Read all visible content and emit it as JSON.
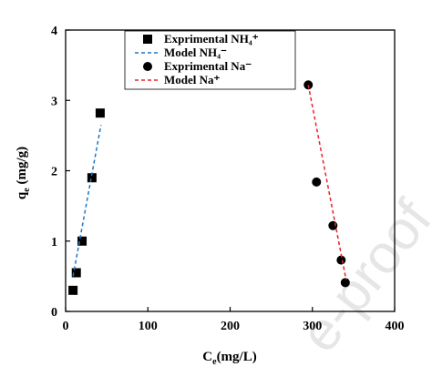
{
  "chart_data": {
    "type": "scatter",
    "xlabel_main": "C",
    "xlabel_sub": "e",
    "xlabel_rest": "(mg/L)",
    "ylabel_main": "q",
    "ylabel_sub": "e",
    "ylabel_rest": " (mg/g)",
    "xlim": [
      0,
      400
    ],
    "ylim": [
      0,
      4
    ],
    "x_ticks": [
      0,
      100,
      200,
      300,
      400
    ],
    "y_ticks": [
      0,
      1,
      2,
      3,
      4
    ],
    "grid": false,
    "legend_position": "top-center",
    "series": [
      {
        "name": "Exprimental NH₄⁺",
        "kind": "points",
        "marker": "square",
        "color": "#000000",
        "x": [
          9,
          13,
          20,
          32,
          42
        ],
        "y": [
          0.3,
          0.55,
          1.0,
          1.9,
          2.82
        ]
      },
      {
        "name": "Model NH₄⁻",
        "kind": "line",
        "dash": true,
        "color": "#1f77c4",
        "x": [
          9,
          43
        ],
        "y": [
          0.5,
          2.65
        ]
      },
      {
        "name": "Exprimental Na⁻",
        "kind": "points",
        "marker": "circle",
        "color": "#000000",
        "x": [
          295,
          305,
          325,
          335,
          340
        ],
        "y": [
          3.22,
          1.84,
          1.22,
          0.73,
          0.41
        ]
      },
      {
        "name": "Model Na⁺",
        "kind": "line",
        "dash": true,
        "color": "#e8202a",
        "x": [
          295,
          341
        ],
        "y": [
          3.22,
          0.45
        ]
      }
    ]
  }
}
